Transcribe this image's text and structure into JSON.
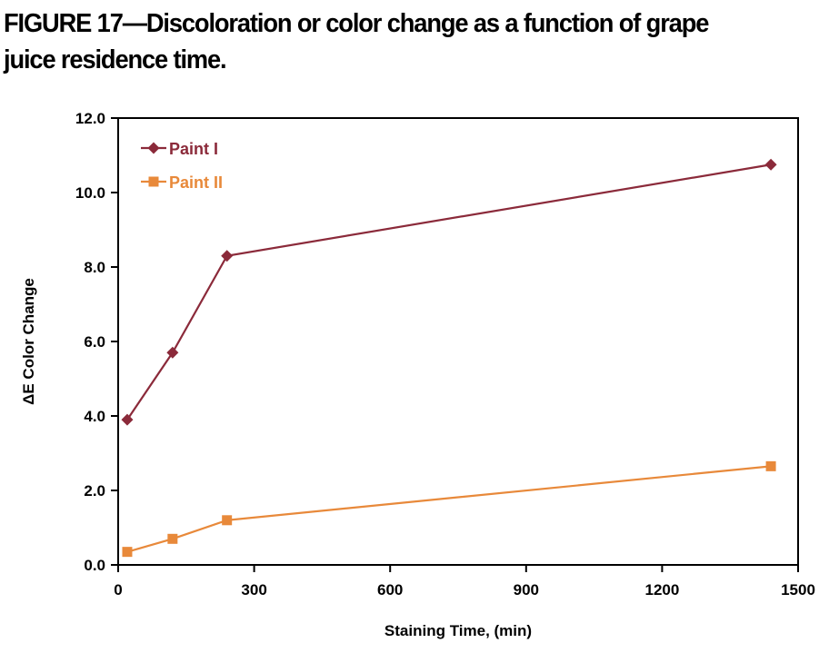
{
  "figure": {
    "caption_line1": "FIGURE 17—Discoloration or color change as a function of grape",
    "caption_line2": "juice residence time."
  },
  "chart_data": {
    "type": "line",
    "xlabel": "Staining Time, (min)",
    "ylabel": "ΔE Color Change",
    "xlim": [
      0,
      1500
    ],
    "ylim": [
      0,
      12
    ],
    "xticks": [
      "0",
      "300",
      "600",
      "900",
      "1200",
      "1500"
    ],
    "yticks": [
      "0.0",
      "2.0",
      "4.0",
      "6.0",
      "8.0",
      "10.0",
      "12.0"
    ],
    "grid": false,
    "legend": "top-left",
    "series": [
      {
        "name": "Paint I",
        "color": "#8B2A3A",
        "marker": "diamond",
        "x": [
          20,
          120,
          240,
          1440
        ],
        "y": [
          3.9,
          5.7,
          8.3,
          10.75
        ]
      },
      {
        "name": "Paint II",
        "color": "#E8893A",
        "marker": "square",
        "x": [
          20,
          120,
          240,
          1440
        ],
        "y": [
          0.35,
          0.7,
          1.2,
          2.65
        ]
      }
    ]
  }
}
